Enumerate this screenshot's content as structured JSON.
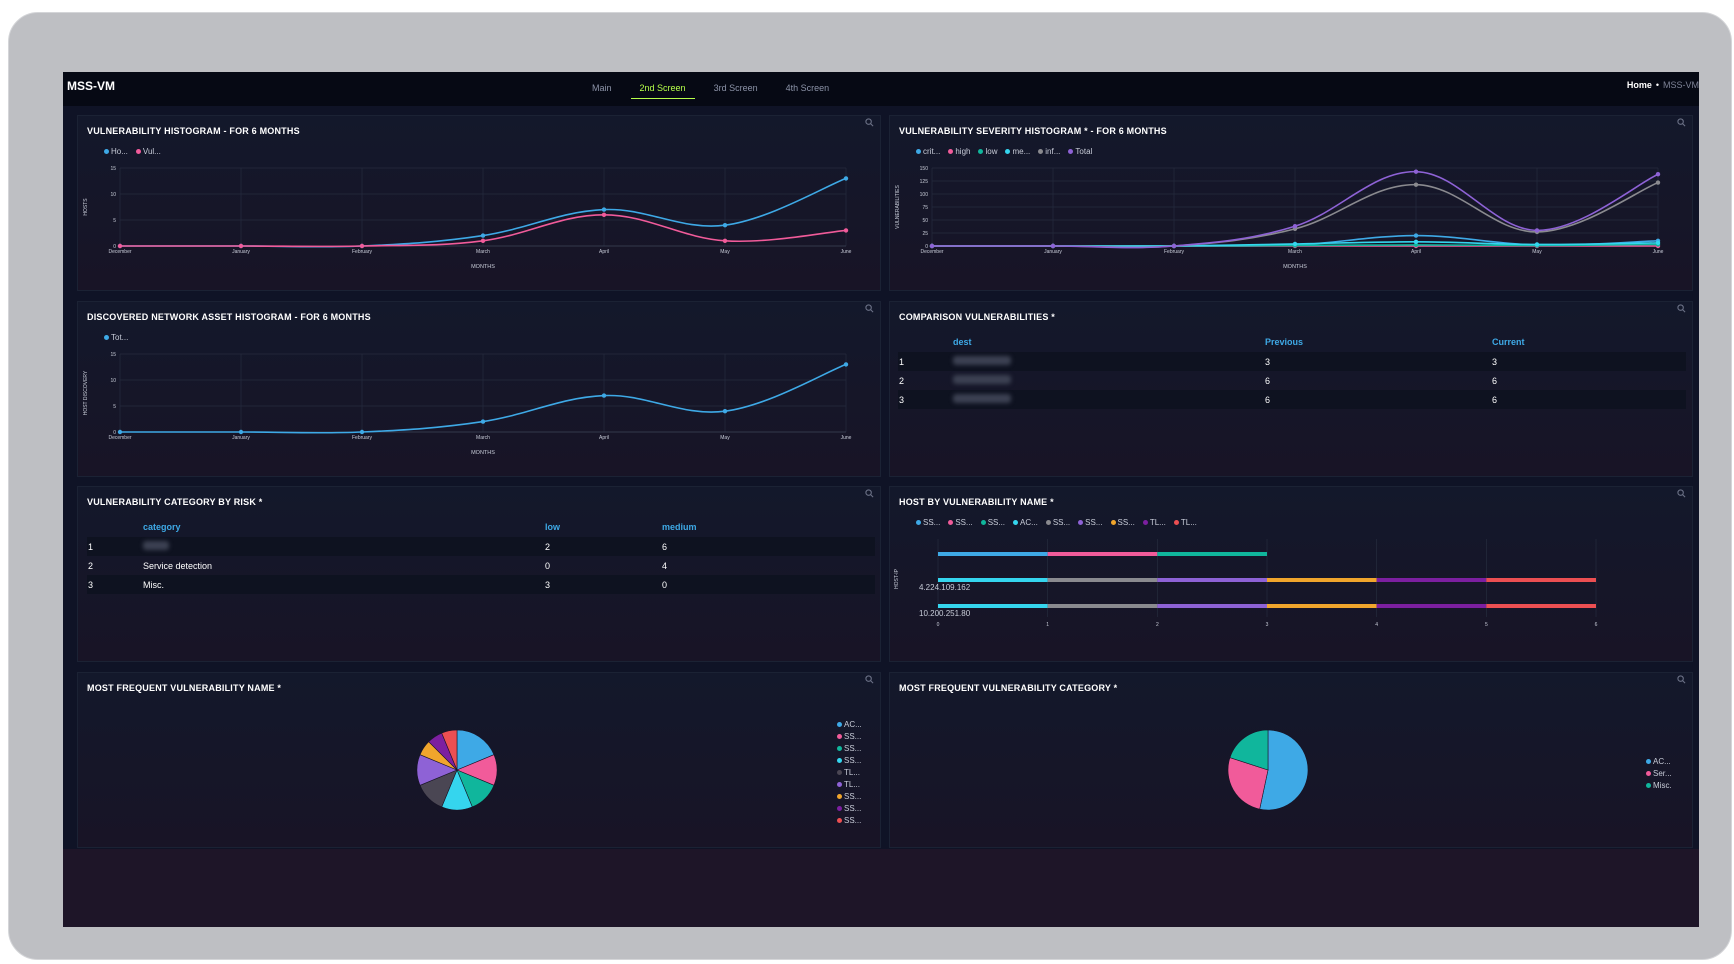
{
  "app": {
    "title": "MSS-VM",
    "tabs": [
      {
        "label": "Main",
        "active": false
      },
      {
        "label": "2nd Screen",
        "active": true
      },
      {
        "label": "3rd Screen",
        "active": false
      },
      {
        "label": "4th Screen",
        "active": false
      }
    ],
    "breadcrumb": {
      "home": "Home",
      "sep": "•",
      "current": "MSS-VM"
    }
  },
  "colors": {
    "blue": "#3ea9e6",
    "pink": "#f15b9a",
    "teal": "#10b69c",
    "cyan": "#35d5ee",
    "gray": "#8a8a8f",
    "purple": "#8e62d6",
    "orange": "#f0a52c",
    "violet": "#7c1fa0",
    "red": "#ec4f52",
    "dark": "#4a4653",
    "accent": "#b6ff4a"
  },
  "panels": {
    "vuln_hist": {
      "title": "VULNERABILITY HISTOGRAM - FOR 6 MONTHS"
    },
    "sev_hist": {
      "title": "VULNERABILITY SEVERITY HISTOGRAM * - FOR 6 MONTHS"
    },
    "asset_hist": {
      "title": "DISCOVERED NETWORK ASSET HISTOGRAM - FOR 6 MONTHS"
    },
    "comparison": {
      "title": "COMPARISON VULNERABILITIES *",
      "headers": [
        "dest",
        "Previous",
        "Current"
      ],
      "rows": [
        {
          "n": "1",
          "previous": "3",
          "current": "3"
        },
        {
          "n": "2",
          "previous": "6",
          "current": "6"
        },
        {
          "n": "3",
          "previous": "6",
          "current": "6"
        }
      ]
    },
    "category_risk": {
      "title": "VULNERABILITY CATEGORY BY RISK *",
      "headers": [
        "category",
        "low",
        "medium"
      ],
      "rows": [
        {
          "n": "1",
          "category": "",
          "low": "2",
          "medium": "6"
        },
        {
          "n": "2",
          "category": "Service detection",
          "low": "0",
          "medium": "4"
        },
        {
          "n": "3",
          "category": "Misc.",
          "low": "3",
          "medium": "0"
        }
      ]
    },
    "host_by_name": {
      "title": "HOST BY VULNERABILITY NAME *"
    },
    "freq_name": {
      "title": "MOST FREQUENT VULNERABILITY NAME *"
    },
    "freq_category": {
      "title": "MOST FREQUENT VULNERABILITY CATEGORY *"
    }
  },
  "chart_data": [
    {
      "id": "vuln_hist",
      "type": "line",
      "x": [
        "December",
        "January",
        "February",
        "March",
        "April",
        "May",
        "June"
      ],
      "xlabel": "MONTHS",
      "ylabel": "HOSTS",
      "ylim": [
        0,
        15
      ],
      "yticks": [
        0,
        5,
        10,
        15
      ],
      "grid": true,
      "legend_position": "top-left",
      "series": [
        {
          "name": "Ho...",
          "color": "#3ea9e6",
          "values": [
            0,
            0,
            0,
            2,
            7,
            4,
            13
          ]
        },
        {
          "name": "Vul...",
          "color": "#f15b9a",
          "values": [
            0,
            0,
            0,
            1,
            6,
            1,
            3
          ]
        }
      ]
    },
    {
      "id": "sev_hist",
      "type": "line",
      "x": [
        "December",
        "January",
        "February",
        "March",
        "April",
        "May",
        "June"
      ],
      "xlabel": "MONTHS",
      "ylabel": "VULNERABILITIES",
      "ylim": [
        0,
        150
      ],
      "yticks": [
        0,
        25,
        50,
        75,
        100,
        125,
        150
      ],
      "grid": true,
      "legend_position": "top-left",
      "series": [
        {
          "name": "crit...",
          "color": "#3ea9e6",
          "values": [
            0,
            0,
            0,
            2,
            20,
            2,
            10
          ]
        },
        {
          "name": "high",
          "color": "#f15b9a",
          "values": [
            0,
            0,
            0,
            0,
            0,
            0,
            0
          ]
        },
        {
          "name": "low",
          "color": "#10b69c",
          "values": [
            0,
            0,
            0,
            1,
            2,
            1,
            3
          ]
        },
        {
          "name": "me...",
          "color": "#35d5ee",
          "values": [
            0,
            0,
            0,
            4,
            8,
            3,
            6
          ]
        },
        {
          "name": "inf...",
          "color": "#8a8a8f",
          "values": [
            0,
            0,
            0,
            33,
            118,
            27,
            122
          ]
        },
        {
          "name": "Total",
          "color": "#8e62d6",
          "values": [
            0,
            0,
            0,
            38,
            143,
            30,
            138
          ]
        }
      ]
    },
    {
      "id": "asset_hist",
      "type": "line",
      "x": [
        "December",
        "January",
        "February",
        "March",
        "April",
        "May",
        "June"
      ],
      "xlabel": "MONTHS",
      "ylabel": "HOST DISCOVERY",
      "ylim": [
        0,
        15
      ],
      "yticks": [
        0,
        5,
        10,
        15
      ],
      "grid": true,
      "legend_position": "top-left",
      "series": [
        {
          "name": "Tot...",
          "color": "#3ea9e6",
          "values": [
            0,
            0,
            0,
            2,
            7,
            4,
            13
          ]
        }
      ]
    },
    {
      "id": "host_by_name",
      "type": "bar",
      "orientation": "horizontal",
      "stacked": true,
      "ylabel": "HOST-IP",
      "xlim": [
        0,
        6
      ],
      "xticks": [
        0,
        1,
        2,
        3,
        4,
        5,
        6
      ],
      "categories": [
        "",
        "4.224.109.162",
        "10.200.251.80"
      ],
      "legend_position": "top-left",
      "series": [
        {
          "name": "SS...",
          "color": "#3ea9e6",
          "values": [
            1,
            0,
            0
          ]
        },
        {
          "name": "SS...",
          "color": "#f15b9a",
          "values": [
            1,
            0,
            0
          ]
        },
        {
          "name": "SS...",
          "color": "#10b69c",
          "values": [
            1,
            0,
            0
          ]
        },
        {
          "name": "AC...",
          "color": "#35d5ee",
          "values": [
            0,
            1,
            1
          ]
        },
        {
          "name": "SS...",
          "color": "#8a8a8f",
          "values": [
            0,
            1,
            1
          ]
        },
        {
          "name": "SS...",
          "color": "#8e62d6",
          "values": [
            0,
            1,
            1
          ]
        },
        {
          "name": "SS...",
          "color": "#f0a52c",
          "values": [
            0,
            1,
            1
          ]
        },
        {
          "name": "TL...",
          "color": "#7c1fa0",
          "values": [
            0,
            1,
            1
          ]
        },
        {
          "name": "TL...",
          "color": "#ec4f52",
          "values": [
            0,
            1,
            1
          ]
        }
      ]
    },
    {
      "id": "freq_name",
      "type": "pie",
      "legend_position": "right",
      "slices": [
        {
          "name": "AC...",
          "color": "#3ea9e6",
          "value": 3
        },
        {
          "name": "SS...",
          "color": "#f15b9a",
          "value": 2
        },
        {
          "name": "SS...",
          "color": "#10b69c",
          "value": 2
        },
        {
          "name": "SS...",
          "color": "#35d5ee",
          "value": 2
        },
        {
          "name": "TL...",
          "color": "#4a4653",
          "value": 2
        },
        {
          "name": "TL...",
          "color": "#8e62d6",
          "value": 2
        },
        {
          "name": "SS...",
          "color": "#f0a52c",
          "value": 1
        },
        {
          "name": "SS...",
          "color": "#7c1fa0",
          "value": 1
        },
        {
          "name": "SS...",
          "color": "#ec4f52",
          "value": 1
        }
      ]
    },
    {
      "id": "freq_category",
      "type": "pie",
      "legend_position": "right",
      "slices": [
        {
          "name": "AC...",
          "color": "#3ea9e6",
          "value": 8
        },
        {
          "name": "Ser...",
          "color": "#f15b9a",
          "value": 4
        },
        {
          "name": "Misc.",
          "color": "#10b69c",
          "value": 3
        }
      ]
    }
  ]
}
